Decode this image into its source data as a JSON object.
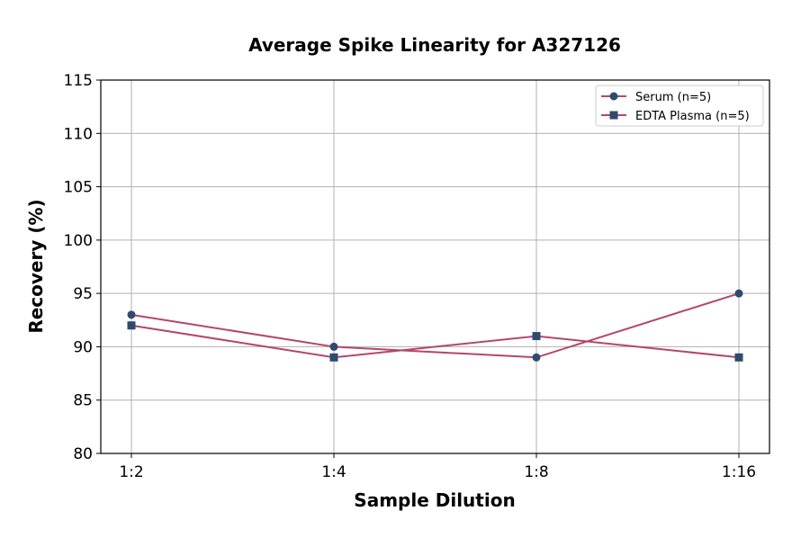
{
  "chart_data": {
    "type": "line",
    "title": "Average Spike Linearity for A327126",
    "xlabel": "Sample Dilution",
    "ylabel": "Recovery (%)",
    "categories": [
      "1:2",
      "1:4",
      "1:8",
      "1:16"
    ],
    "ylim": [
      80,
      115
    ],
    "yticks": [
      80,
      85,
      90,
      95,
      100,
      105,
      110,
      115
    ],
    "grid": true,
    "legend_position": "top-right",
    "line_color": "#b5466b",
    "marker_color": "#2e4a6e",
    "series": [
      {
        "name": "Serum (n=5)",
        "marker": "circle",
        "values": [
          93,
          90,
          89,
          95
        ]
      },
      {
        "name": "EDTA Plasma (n=5)",
        "marker": "square",
        "values": [
          92,
          89,
          91,
          89
        ]
      }
    ]
  }
}
